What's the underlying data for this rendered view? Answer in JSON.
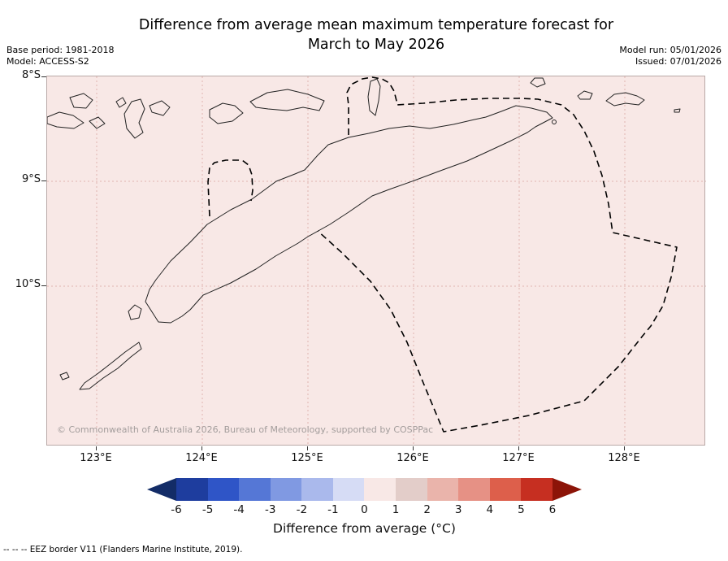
{
  "header": {
    "title_line1": "Difference from average mean maximum temperature forecast for",
    "title_line2": "March to May 2026",
    "base_period": "Base period: 1981-2018",
    "model": "Model: ACCESS-S2",
    "model_run": "Model run: 05/01/2026",
    "issued": "Issued: 07/01/2026"
  },
  "map": {
    "background_color": "#f8e8e6",
    "gridline_color": "#e0b4b0",
    "y_ticks": [
      "8°S",
      "9°S",
      "10°S"
    ],
    "x_ticks": [
      "123°E",
      "124°E",
      "125°E",
      "126°E",
      "127°E",
      "128°E"
    ],
    "copyright": "© Commonwealth of Australia 2026, Bureau of Meteorology, supported by COSPPac"
  },
  "colorbar": {
    "label": "Difference from average (°C)",
    "ticks": [
      "-6",
      "-5",
      "-4",
      "-3",
      "-2",
      "-1",
      "0",
      "1",
      "2",
      "3",
      "4",
      "5",
      "6"
    ],
    "segments": [
      "#1e3d9e",
      "#2f55c7",
      "#5577d6",
      "#8099e2",
      "#aab9ec",
      "#d6dcf5",
      "#f8e8e6",
      "#e3cdc9",
      "#eab4ab",
      "#e69185",
      "#dd5f4b",
      "#c62f21"
    ],
    "left_arrow_color": "#132c67",
    "right_arrow_color": "#8c1408"
  },
  "footnote": "-- -- -- EEZ border V11 (Flanders Marine Institute, 2019)."
}
